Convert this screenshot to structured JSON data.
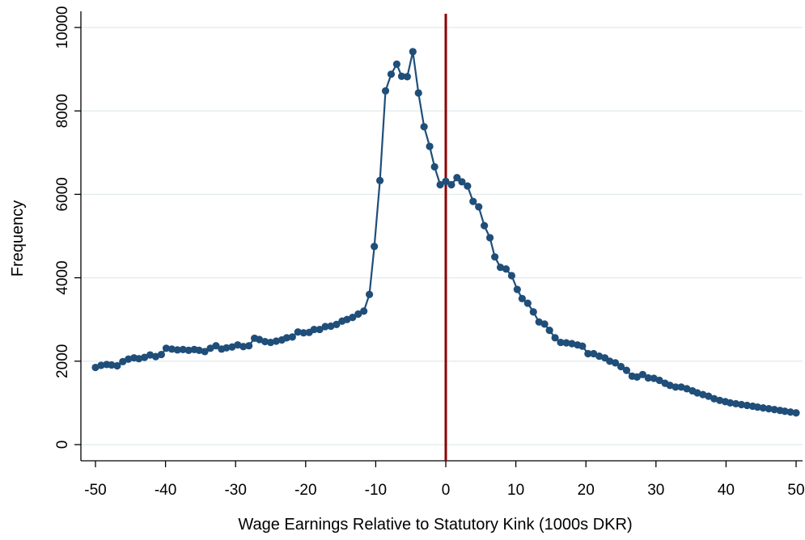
{
  "chart_data": {
    "type": "line",
    "title": "",
    "xlabel": "Wage Earnings Relative to Statutory Kink (1000s DKR)",
    "ylabel": "Frequency",
    "xlim": [
      -50,
      50
    ],
    "ylim": [
      0,
      10000
    ],
    "x_ticks": [
      -50,
      -40,
      -30,
      -20,
      -10,
      0,
      10,
      20,
      30,
      40,
      50
    ],
    "y_ticks": [
      0,
      2000,
      4000,
      6000,
      8000,
      10000
    ],
    "grid": "horizontal",
    "reference_line": {
      "x": 0,
      "color": "#8b0000"
    },
    "series_color": "#1f4e79",
    "series": [
      {
        "x": [
          -50,
          -49.2,
          -48.4,
          -47.7,
          -46.9,
          -46.1,
          -45.3,
          -44.5,
          -43.8,
          -43.0,
          -42.2,
          -41.4,
          -40.6,
          -39.9,
          -39.1,
          -38.3,
          -37.5,
          -36.7,
          -35.9,
          -35.2,
          -34.4,
          -33.6,
          -32.8,
          -32.0,
          -31.3,
          -30.5,
          -29.7,
          -28.9,
          -28.1,
          -27.3,
          -26.6,
          -25.8,
          -25.0,
          -24.2,
          -23.4,
          -22.7,
          -21.9,
          -21.1,
          -20.3,
          -19.5,
          -18.8,
          -18.0,
          -17.2,
          -16.4,
          -15.6,
          -14.8,
          -14.1,
          -13.3,
          -12.5,
          -11.7,
          -10.9,
          -10.2,
          -9.4,
          -8.6,
          -7.8,
          -7.0,
          -6.3,
          -5.5,
          -4.7,
          -3.9,
          -3.1,
          -2.3,
          -1.6,
          -0.8,
          0.0,
          0.8,
          1.6,
          2.3,
          3.1,
          3.9,
          4.7,
          5.5,
          6.3,
          7.0,
          7.8,
          8.6,
          9.4,
          10.2,
          10.9,
          11.7,
          12.5,
          13.3,
          14.1,
          14.8,
          15.6,
          16.4,
          17.2,
          18.0,
          18.8,
          19.5,
          20.3,
          21.1,
          21.9,
          22.7,
          23.4,
          24.2,
          25.0,
          25.8,
          26.6,
          27.3,
          28.1,
          28.9,
          29.7,
          30.5,
          31.3,
          32.0,
          32.8,
          33.6,
          34.4,
          35.2,
          35.9,
          36.7,
          37.5,
          38.3,
          39.1,
          39.9,
          40.6,
          41.4,
          42.2,
          43.0,
          43.8,
          44.5,
          45.3,
          46.1,
          46.9,
          47.7,
          48.4,
          49.2,
          50.0
        ],
        "values": [
          1850,
          1900,
          1920,
          1910,
          1890,
          1990,
          2050,
          2080,
          2060,
          2090,
          2150,
          2110,
          2160,
          2310,
          2290,
          2270,
          2280,
          2260,
          2280,
          2260,
          2230,
          2310,
          2370,
          2290,
          2320,
          2340,
          2390,
          2350,
          2370,
          2550,
          2520,
          2470,
          2450,
          2480,
          2510,
          2560,
          2580,
          2700,
          2680,
          2690,
          2760,
          2760,
          2830,
          2840,
          2880,
          2960,
          3000,
          3050,
          3130,
          3200,
          3600,
          4750,
          6330,
          8480,
          8880,
          9120,
          8830,
          8820,
          9420,
          8430,
          7620,
          7150,
          6660,
          6230,
          6310,
          6230,
          6400,
          6300,
          6200,
          5830,
          5700,
          5250,
          4960,
          4500,
          4250,
          4210,
          4050,
          3720,
          3500,
          3390,
          3180,
          2940,
          2890,
          2740,
          2560,
          2450,
          2440,
          2420,
          2390,
          2360,
          2180,
          2180,
          2120,
          2080,
          2000,
          1960,
          1870,
          1780,
          1640,
          1620,
          1680,
          1600,
          1590,
          1540,
          1470,
          1420,
          1380,
          1380,
          1340,
          1290,
          1240,
          1200,
          1160,
          1100,
          1060,
          1030,
          1000,
          980,
          960,
          940,
          920,
          900,
          880,
          860,
          840,
          820,
          800,
          780,
          760
        ]
      }
    ]
  }
}
